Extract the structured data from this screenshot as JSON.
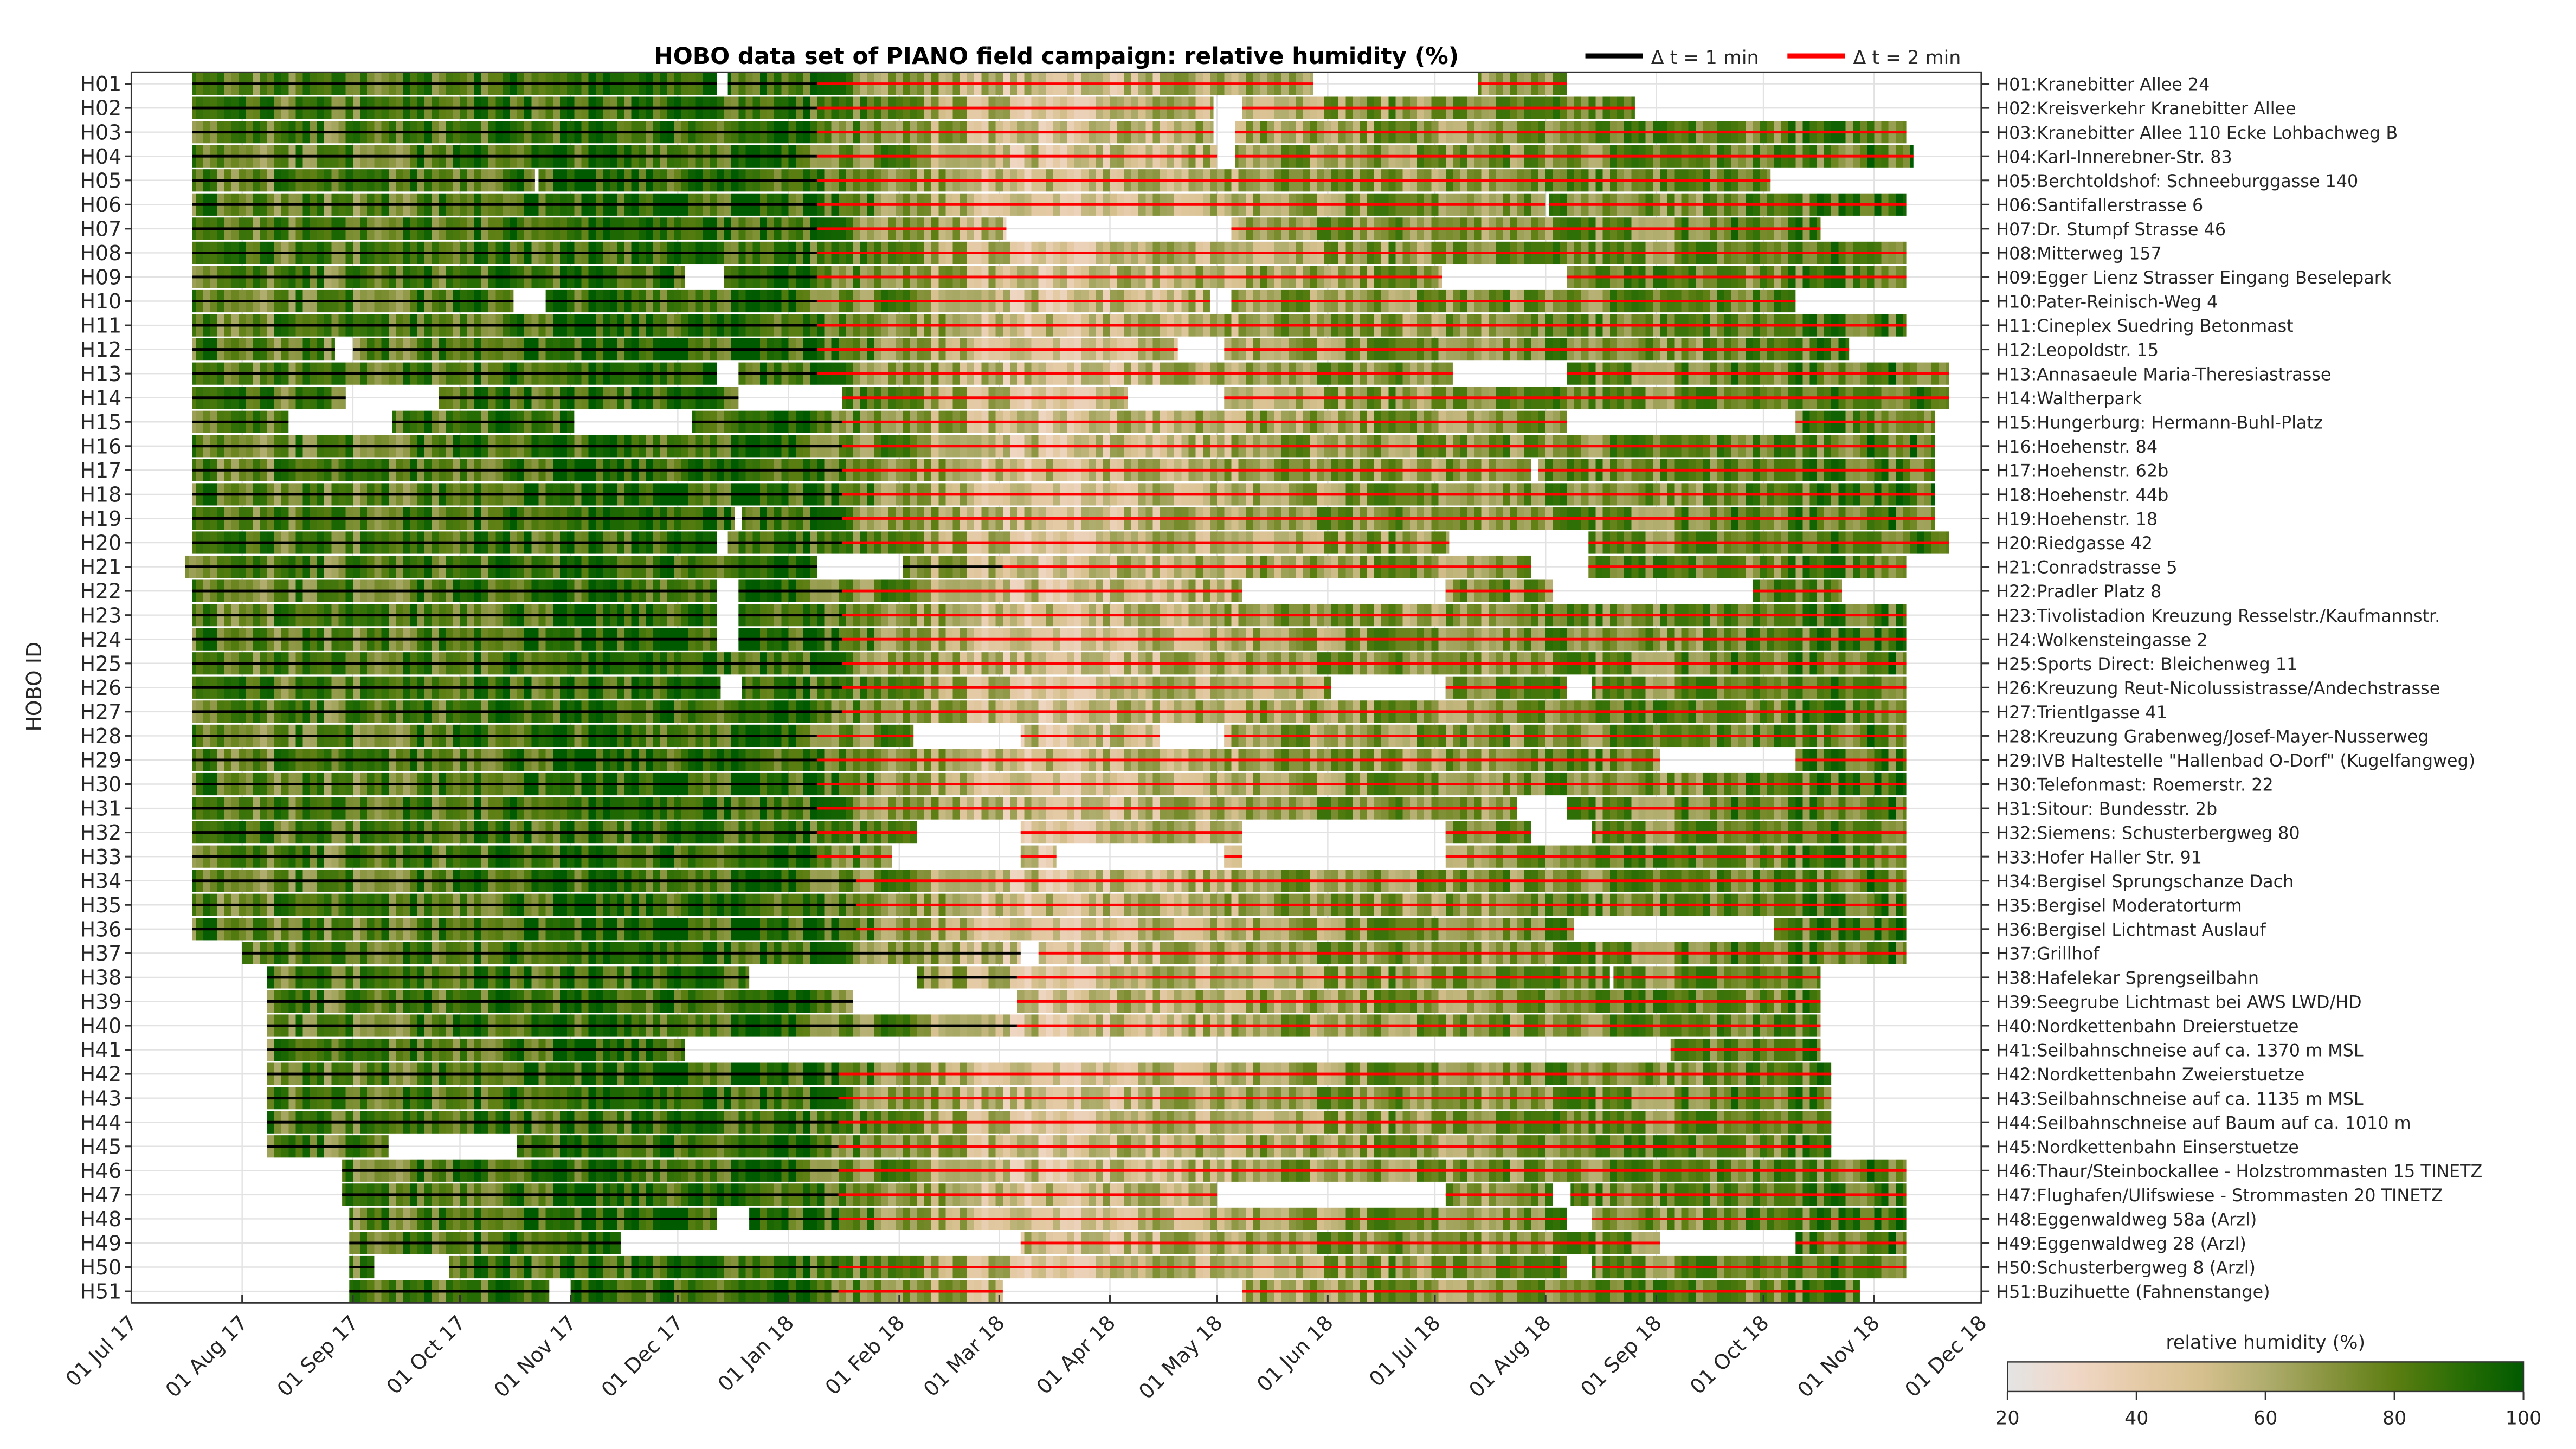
{
  "chart_data": {
    "type": "heatmap",
    "title": "HOBO data set of PIANO field campaign: relative humidity (%)",
    "ylabel": "HOBO ID",
    "xlabel": "",
    "time_unit": "days since 01 Jul 17",
    "xlim": [
      0,
      518
    ],
    "x_ticks": [
      "01 Jul 17",
      "01 Aug 17",
      "01 Sep 17",
      "01 Oct 17",
      "01 Nov 17",
      "01 Dec 17",
      "01 Jan 18",
      "01 Feb 18",
      "01 Mar 18",
      "01 Apr 18",
      "01 May 18",
      "01 Jun 18",
      "01 Jul 18",
      "01 Aug 18",
      "01 Sep 18",
      "01 Oct 18",
      "01 Nov 18",
      "01 Dec 18"
    ],
    "x_tick_days": [
      0,
      31,
      62,
      92,
      123,
      153,
      184,
      215,
      243,
      274,
      304,
      335,
      365,
      396,
      427,
      457,
      488,
      518
    ],
    "grid": true,
    "legend": {
      "placement": "top-right",
      "entries": [
        {
          "label": "Δ t = 1 min",
          "color": "#000000"
        },
        {
          "label": "Δ t = 2 min",
          "color": "#ff0000"
        }
      ]
    },
    "colorbar": {
      "label": "relative humidity (%)",
      "range": [
        20,
        100
      ],
      "ticks": [
        "20",
        "40",
        "60",
        "80",
        "100"
      ],
      "colors": [
        "#e4e4e4",
        "#f0d8c8",
        "#e6cba8",
        "#d6c08e",
        "#b0ad6e",
        "#88943e",
        "#5c7e12",
        "#2a6e05",
        "#005a00"
      ]
    },
    "stations": [
      {
        "id": "H01",
        "label": "H01:Kranebitter Allee 24",
        "start": 17,
        "end": 402,
        "dt2_from": 192,
        "gaps": [
          [
            164,
            167
          ],
          [
            331,
            377
          ]
        ]
      },
      {
        "id": "H02",
        "label": "H02:Kreisverkehr Kranebitter Allee",
        "start": 17,
        "end": 421,
        "dt2_from": 192,
        "gaps": [
          [
            303,
            311
          ]
        ]
      },
      {
        "id": "H03",
        "label": "H03:Kranebitter Allee 110 Ecke Lohbachweg B",
        "start": 17,
        "end": 497,
        "dt2_from": 192,
        "gaps": [
          [
            303,
            309
          ]
        ]
      },
      {
        "id": "H04",
        "label": "H04:Karl-Innerebner-Str. 83",
        "start": 17,
        "end": 499,
        "dt2_from": 192,
        "gaps": [
          [
            304,
            309
          ]
        ]
      },
      {
        "id": "H05",
        "label": "H05:Berchtoldshof: Schneeburggasse 140",
        "start": 17,
        "end": 459,
        "dt2_from": 192,
        "gaps": [
          [
            113,
            114
          ]
        ]
      },
      {
        "id": "H06",
        "label": "H06:Santifallerstrasse 6",
        "start": 17,
        "end": 497,
        "dt2_from": 192,
        "gaps": [
          [
            396,
            397
          ]
        ]
      },
      {
        "id": "H07",
        "label": "H07:Dr. Stumpf Strasse 46",
        "start": 17,
        "end": 473,
        "dt2_from": 192,
        "gaps": [
          [
            245,
            308
          ]
        ]
      },
      {
        "id": "H08",
        "label": "H08:Mitterweg 157",
        "start": 17,
        "end": 497,
        "dt2_from": 192,
        "gaps": []
      },
      {
        "id": "H09",
        "label": "H09:Egger Lienz Strasser Eingang Beselepark",
        "start": 17,
        "end": 497,
        "dt2_from": 192,
        "gaps": [
          [
            155,
            166
          ],
          [
            367,
            402
          ]
        ]
      },
      {
        "id": "H10",
        "label": "H10:Pater-Reinisch-Weg 4",
        "start": 17,
        "end": 466,
        "dt2_from": 192,
        "gaps": [
          [
            107,
            116
          ],
          [
            302,
            308
          ]
        ]
      },
      {
        "id": "H11",
        "label": "H11:Cineplex Suedring Betonmast",
        "start": 17,
        "end": 497,
        "dt2_from": 192,
        "gaps": []
      },
      {
        "id": "H12",
        "label": "H12:Leopoldstr. 15",
        "start": 17,
        "end": 481,
        "dt2_from": 192,
        "gaps": [
          [
            57,
            62
          ],
          [
            293,
            306
          ]
        ]
      },
      {
        "id": "H13",
        "label": "H13:Annasaeule Maria-Theresiastrasse",
        "start": 17,
        "end": 509,
        "dt2_from": 192,
        "gaps": [
          [
            164,
            170
          ],
          [
            370,
            402
          ]
        ]
      },
      {
        "id": "H14",
        "label": "H14:Waltherpark",
        "start": 17,
        "end": 509,
        "dt2_from": 199,
        "gaps": [
          [
            60,
            86
          ],
          [
            170,
            199
          ],
          [
            279,
            306
          ]
        ]
      },
      {
        "id": "H15",
        "label": "H15:Hungerburg: Hermann-Buhl-Platz",
        "start": 17,
        "end": 505,
        "dt2_from": 199,
        "gaps": [
          [
            44,
            73
          ],
          [
            124,
            157
          ],
          [
            402,
            466
          ]
        ]
      },
      {
        "id": "H16",
        "label": "H16:Hoehenstr. 84",
        "start": 17,
        "end": 505,
        "dt2_from": 199,
        "gaps": []
      },
      {
        "id": "H17",
        "label": "H17:Hoehenstr. 62b",
        "start": 17,
        "end": 505,
        "dt2_from": 199,
        "gaps": [
          [
            392,
            394
          ]
        ]
      },
      {
        "id": "H18",
        "label": "H18:Hoehenstr. 44b",
        "start": 17,
        "end": 505,
        "dt2_from": 199,
        "gaps": []
      },
      {
        "id": "H19",
        "label": "H19:Hoehenstr. 18",
        "start": 17,
        "end": 505,
        "dt2_from": 199,
        "gaps": [
          [
            169,
            171
          ]
        ]
      },
      {
        "id": "H20",
        "label": "H20:Riedgasse 42",
        "start": 17,
        "end": 509,
        "dt2_from": 199,
        "gaps": [
          [
            164,
            167
          ],
          [
            369,
            408
          ]
        ]
      },
      {
        "id": "H21",
        "label": "H21:Conradstrasse 5",
        "start": 15,
        "end": 497,
        "dt2_from": 244,
        "gaps": [
          [
            192,
            216
          ],
          [
            392,
            408
          ]
        ]
      },
      {
        "id": "H22",
        "label": "H22:Pradler Platz 8",
        "start": 17,
        "end": 479,
        "dt2_from": 199,
        "gaps": [
          [
            164,
            170
          ],
          [
            311,
            368
          ],
          [
            398,
            454
          ]
        ]
      },
      {
        "id": "H23",
        "label": "H23:Tivolistadion Kreuzung Resselstr./Kaufmannstr.",
        "start": 17,
        "end": 497,
        "dt2_from": 199,
        "gaps": [
          [
            164,
            170
          ]
        ]
      },
      {
        "id": "H24",
        "label": "H24:Wolkensteingasse 2",
        "start": 17,
        "end": 497,
        "dt2_from": 199,
        "gaps": [
          [
            164,
            170
          ]
        ]
      },
      {
        "id": "H25",
        "label": "H25:Sports Direct: Bleichenweg 11",
        "start": 17,
        "end": 497,
        "dt2_from": 199,
        "gaps": []
      },
      {
        "id": "H26",
        "label": "H26:Kreuzung Reut-Nicolussistrasse/Andechstrasse",
        "start": 17,
        "end": 497,
        "dt2_from": 199,
        "gaps": [
          [
            165,
            171
          ],
          [
            336,
            368
          ],
          [
            402,
            409
          ]
        ]
      },
      {
        "id": "H27",
        "label": "H27:Trientlgasse 41",
        "start": 17,
        "end": 497,
        "dt2_from": 199,
        "gaps": []
      },
      {
        "id": "H28",
        "label": "H28:Kreuzung Grabenweg/Josef-Mayer-Nusserweg",
        "start": 17,
        "end": 497,
        "dt2_from": 192,
        "gaps": [
          [
            219,
            249
          ],
          [
            288,
            306
          ]
        ]
      },
      {
        "id": "H29",
        "label": "H29:IVB Haltestelle \"Hallenbad O-Dorf\" (Kugelfangweg)",
        "start": 17,
        "end": 497,
        "dt2_from": 192,
        "gaps": [
          [
            428,
            466
          ]
        ]
      },
      {
        "id": "H30",
        "label": "H30:Telefonmast: Roemerstr. 22",
        "start": 17,
        "end": 497,
        "dt2_from": 192,
        "gaps": []
      },
      {
        "id": "H31",
        "label": "H31:Sitour: Bundesstr. 2b",
        "start": 17,
        "end": 497,
        "dt2_from": 192,
        "gaps": [
          [
            388,
            402
          ]
        ]
      },
      {
        "id": "H32",
        "label": "H32:Siemens: Schusterbergweg 80",
        "start": 17,
        "end": 497,
        "dt2_from": 192,
        "gaps": [
          [
            220,
            249
          ],
          [
            311,
            368
          ],
          [
            392,
            409
          ]
        ]
      },
      {
        "id": "H33",
        "label": "H33:Hofer Haller Str. 91",
        "start": 17,
        "end": 497,
        "dt2_from": 192,
        "gaps": [
          [
            213,
            249
          ],
          [
            259,
            306
          ],
          [
            311,
            368
          ]
        ]
      },
      {
        "id": "H34",
        "label": "H34:Bergisel Sprungschanze Dach",
        "start": 17,
        "end": 497,
        "dt2_from": 203,
        "gaps": []
      },
      {
        "id": "H35",
        "label": "H35:Bergisel Moderatorturm",
        "start": 17,
        "end": 497,
        "dt2_from": 203,
        "gaps": []
      },
      {
        "id": "H36",
        "label": "H36:Bergisel Lichtmast Auslauf",
        "start": 17,
        "end": 497,
        "dt2_from": 203,
        "gaps": [
          [
            404,
            460
          ]
        ]
      },
      {
        "id": "H37",
        "label": "H37:Grillhof",
        "start": 31,
        "end": 497,
        "dt2_from": 254,
        "gaps": [
          [
            249,
            254
          ]
        ]
      },
      {
        "id": "H38",
        "label": "H38:Hafelekar Sprengseilbahn",
        "start": 38,
        "end": 473,
        "dt2_from": 248,
        "gaps": [
          [
            173,
            220
          ],
          [
            414,
            415
          ]
        ]
      },
      {
        "id": "H39",
        "label": "H39:Seegrube Lichtmast bei AWS LWD/HD",
        "start": 38,
        "end": 473,
        "dt2_from": 248,
        "gaps": [
          [
            202,
            248
          ]
        ]
      },
      {
        "id": "H40",
        "label": "H40:Nordkettenbahn Dreierstuetze",
        "start": 38,
        "end": 473,
        "dt2_from": 248,
        "gaps": []
      },
      {
        "id": "H41",
        "label": "H41:Seilbahnschneise auf ca. 1370 m MSL",
        "start": 38,
        "end": 473,
        "dt2_from": 431,
        "gaps": [
          [
            155,
            431
          ]
        ]
      },
      {
        "id": "H42",
        "label": "H42:Nordkettenbahn Zweierstuetze",
        "start": 38,
        "end": 476,
        "dt2_from": 198,
        "gaps": []
      },
      {
        "id": "H43",
        "label": "H43:Seilbahnschneise auf ca. 1135 m MSL",
        "start": 38,
        "end": 476,
        "dt2_from": 198,
        "gaps": []
      },
      {
        "id": "H44",
        "label": "H44:Seilbahnschneise auf Baum auf ca. 1010 m",
        "start": 38,
        "end": 476,
        "dt2_from": 198,
        "gaps": []
      },
      {
        "id": "H45",
        "label": "H45:Nordkettenbahn Einserstuetze",
        "start": 38,
        "end": 476,
        "dt2_from": 198,
        "gaps": [
          [
            72,
            108
          ]
        ]
      },
      {
        "id": "H46",
        "label": "H46:Thaur/Steinbockallee - Holzstrommasten 15 TINETZ",
        "start": 59,
        "end": 497,
        "dt2_from": 198,
        "gaps": []
      },
      {
        "id": "H47",
        "label": "H47:Flughafen/Ulifswiese - Strommasten 20 TINETZ",
        "start": 59,
        "end": 497,
        "dt2_from": 198,
        "gaps": [
          [
            304,
            368
          ],
          [
            398,
            403
          ]
        ]
      },
      {
        "id": "H48",
        "label": "H48:Eggenwaldweg 58a (Arzl)",
        "start": 61,
        "end": 497,
        "dt2_from": 198,
        "gaps": [
          [
            164,
            173
          ],
          [
            402,
            409
          ]
        ]
      },
      {
        "id": "H49",
        "label": "H49:Eggenwaldweg 28 (Arzl)",
        "start": 61,
        "end": 497,
        "dt2_from": 198,
        "gaps": [
          [
            137,
            249
          ],
          [
            428,
            466
          ]
        ]
      },
      {
        "id": "H50",
        "label": "H50:Schusterbergweg 8 (Arzl)",
        "start": 61,
        "end": 497,
        "dt2_from": 198,
        "gaps": [
          [
            68,
            89
          ],
          [
            402,
            409
          ]
        ]
      },
      {
        "id": "H51",
        "label": "H51:Buzihuette (Fahnenstange)",
        "start": 61,
        "end": 484,
        "dt2_from": 198,
        "gaps": [
          [
            117,
            123
          ],
          [
            244,
            311
          ]
        ]
      }
    ]
  }
}
